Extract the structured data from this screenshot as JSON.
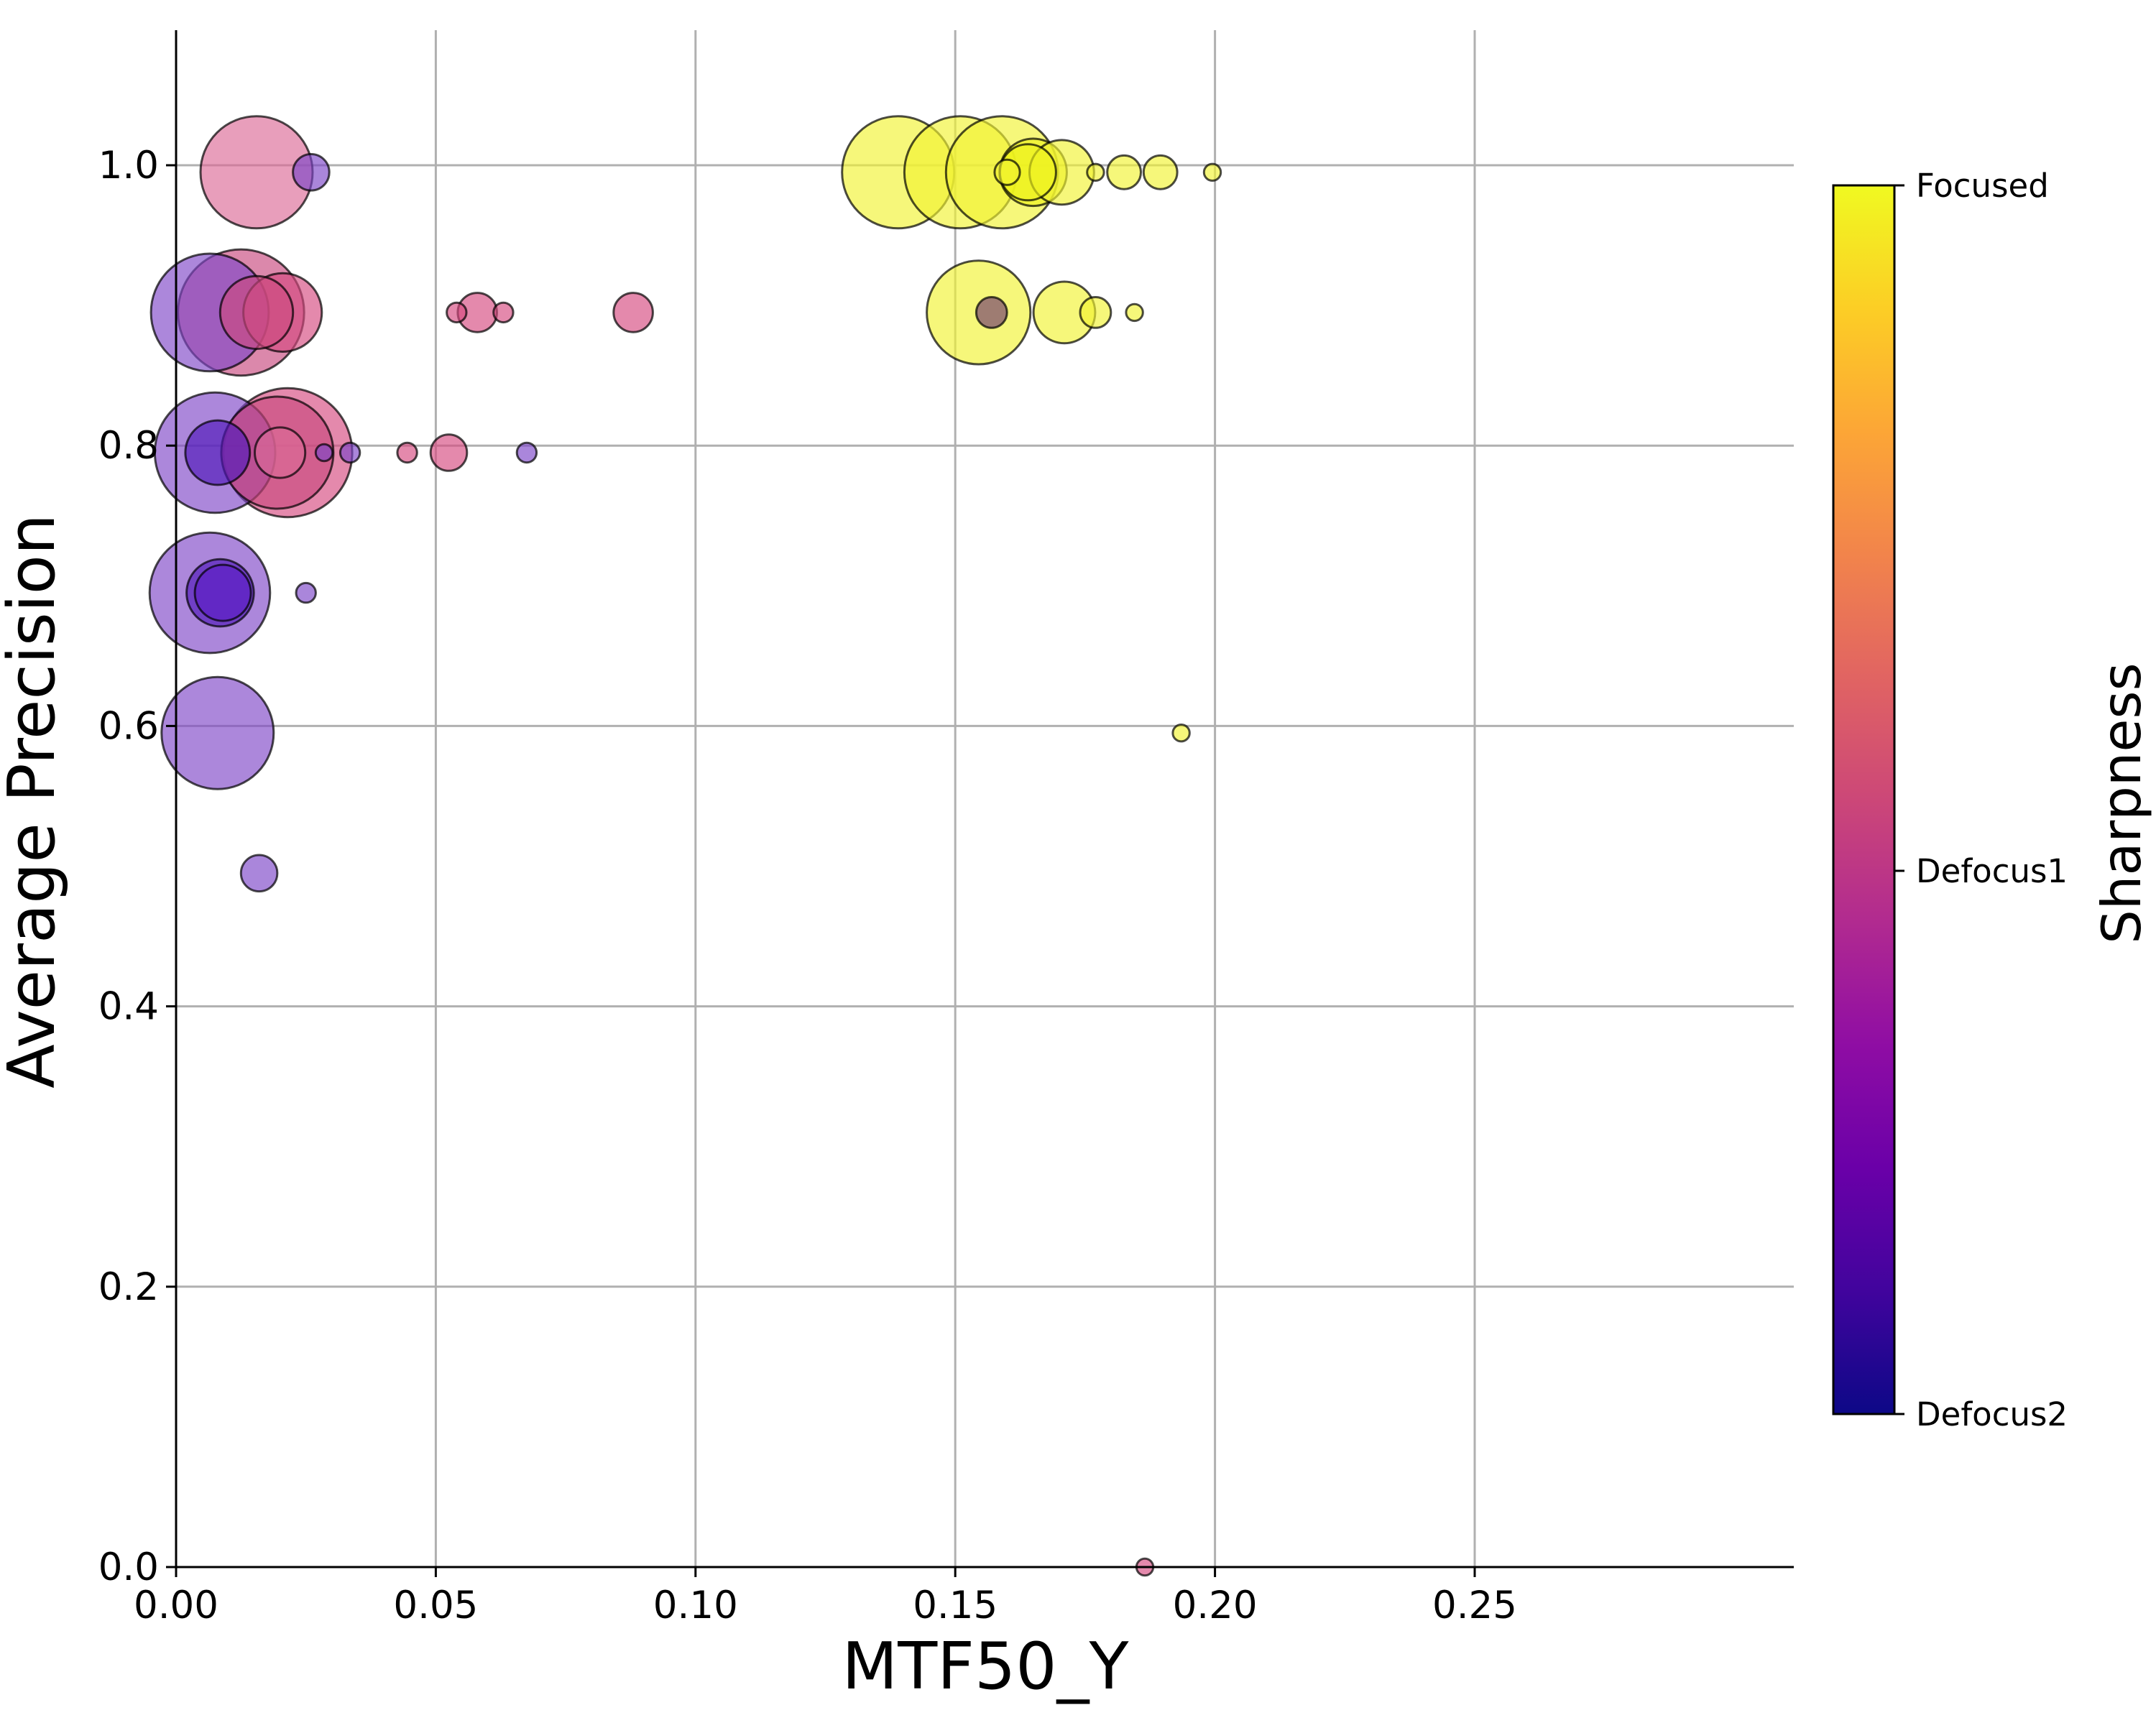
{
  "chart_data": {
    "type": "scatter",
    "xlabel": "MTF50_Y",
    "ylabel": "Average Precision",
    "xlim": [
      0.0,
      0.3
    ],
    "ylim": [
      0.0,
      1.095
    ],
    "xticks": [
      "0.00",
      "0.05",
      "0.10",
      "0.15",
      "0.20",
      "0.25"
    ],
    "xtick_values": [
      0.0,
      0.05,
      0.1,
      0.15,
      0.2,
      0.25
    ],
    "yticks": [
      "0.0",
      "0.2",
      "0.4",
      "0.6",
      "0.8",
      "1.0"
    ],
    "ytick_values": [
      0.0,
      0.2,
      0.4,
      0.6,
      0.8,
      1.0
    ],
    "grid": true,
    "colorbar": {
      "label": "Sharpness",
      "colormap": "plasma",
      "ticks": [
        "Focused",
        "Defocus1",
        "Defocus2"
      ]
    },
    "points": [
      {
        "x": 0.0155,
        "y": 0.995,
        "size": 40,
        "class": "Defocus1",
        "color": "#dc6a96"
      },
      {
        "x": 0.026,
        "y": 0.995,
        "size": 13,
        "class": "Defocus2",
        "color": "#7c45c8"
      },
      {
        "x": 0.0065,
        "y": 0.895,
        "size": 42,
        "class": "Defocus2",
        "color": "#7f47c7"
      },
      {
        "x": 0.0125,
        "y": 0.895,
        "size": 45,
        "class": "Defocus1",
        "color": "#c8487e"
      },
      {
        "x": 0.0155,
        "y": 0.895,
        "size": 26,
        "class": "Defocus1",
        "color": "#cc497f"
      },
      {
        "x": 0.0205,
        "y": 0.895,
        "size": 28,
        "class": "Defocus1",
        "color": "#d5497f"
      },
      {
        "x": 0.054,
        "y": 0.895,
        "size": 7,
        "class": "Defocus1",
        "color": "#d5497f"
      },
      {
        "x": 0.058,
        "y": 0.895,
        "size": 14,
        "class": "Defocus1",
        "color": "#d5497f"
      },
      {
        "x": 0.063,
        "y": 0.895,
        "size": 7,
        "class": "Defocus1",
        "color": "#d5497f"
      },
      {
        "x": 0.088,
        "y": 0.895,
        "size": 14,
        "class": "Defocus1",
        "color": "#d5497f"
      },
      {
        "x": 0.0075,
        "y": 0.795,
        "size": 43,
        "class": "Defocus2",
        "color": "#7f47c7"
      },
      {
        "x": 0.008,
        "y": 0.795,
        "size": 23,
        "class": "Defocus2",
        "color": "#5018ba"
      },
      {
        "x": 0.0195,
        "y": 0.795,
        "size": 40,
        "class": "Defocus1",
        "color": "#c8487e"
      },
      {
        "x": 0.0215,
        "y": 0.795,
        "size": 46,
        "class": "Defocus1",
        "color": "#d5497f"
      },
      {
        "x": 0.02,
        "y": 0.795,
        "size": 18,
        "class": "Defocus1",
        "color": "#dc6a96"
      },
      {
        "x": 0.0285,
        "y": 0.795,
        "size": 6,
        "class": "Defocus2",
        "color": "#7c45c8"
      },
      {
        "x": 0.0335,
        "y": 0.795,
        "size": 7,
        "class": "Defocus2",
        "color": "#7c45c8"
      },
      {
        "x": 0.0445,
        "y": 0.795,
        "size": 7,
        "class": "Defocus1",
        "color": "#d5497f"
      },
      {
        "x": 0.0525,
        "y": 0.795,
        "size": 13,
        "class": "Defocus1",
        "color": "#d5497f"
      },
      {
        "x": 0.0675,
        "y": 0.795,
        "size": 7,
        "class": "Defocus2",
        "color": "#7c45c8"
      },
      {
        "x": 0.0065,
        "y": 0.695,
        "size": 43,
        "class": "Defocus2",
        "color": "#7f47c7"
      },
      {
        "x": 0.0085,
        "y": 0.695,
        "size": 24,
        "class": "Defocus2",
        "color": "#5018ba"
      },
      {
        "x": 0.009,
        "y": 0.695,
        "size": 20,
        "class": "Defocus2",
        "color": "#5a1cc4"
      },
      {
        "x": 0.025,
        "y": 0.695,
        "size": 7,
        "class": "Defocus2",
        "color": "#7c45c8"
      },
      {
        "x": 0.008,
        "y": 0.595,
        "size": 40,
        "class": "Defocus2",
        "color": "#7f47c7"
      },
      {
        "x": 0.016,
        "y": 0.495,
        "size": 13,
        "class": "Defocus2",
        "color": "#7c45c8"
      },
      {
        "x": 0.139,
        "y": 0.995,
        "size": 40,
        "class": "Focused",
        "color": "#f1f233"
      },
      {
        "x": 0.151,
        "y": 0.995,
        "size": 40,
        "class": "Focused",
        "color": "#f1f233"
      },
      {
        "x": 0.159,
        "y": 0.995,
        "size": 40,
        "class": "Focused",
        "color": "#f1f233"
      },
      {
        "x": 0.16,
        "y": 0.995,
        "size": 9,
        "class": "Focused",
        "color": "#f1f233"
      },
      {
        "x": 0.165,
        "y": 0.995,
        "size": 24,
        "class": "Focused",
        "color": "#eef21c"
      },
      {
        "x": 0.164,
        "y": 0.995,
        "size": 20,
        "class": "Focused",
        "color": "#eef21c"
      },
      {
        "x": 0.1705,
        "y": 0.995,
        "size": 23,
        "class": "Focused",
        "color": "#f1f233"
      },
      {
        "x": 0.177,
        "y": 0.995,
        "size": 6,
        "class": "Focused",
        "color": "#f1f233"
      },
      {
        "x": 0.1825,
        "y": 0.995,
        "size": 12,
        "class": "Focused",
        "color": "#f1f233"
      },
      {
        "x": 0.1895,
        "y": 0.995,
        "size": 12,
        "class": "Focused",
        "color": "#f1f233"
      },
      {
        "x": 0.1995,
        "y": 0.995,
        "size": 6,
        "class": "Focused",
        "color": "#f1f233"
      },
      {
        "x": 0.1545,
        "y": 0.895,
        "size": 37,
        "class": "Focused",
        "color": "#f1f233"
      },
      {
        "x": 0.157,
        "y": 0.895,
        "size": 11,
        "class": "Defocus2",
        "color": "#6e3a6e"
      },
      {
        "x": 0.171,
        "y": 0.895,
        "size": 22,
        "class": "Focused",
        "color": "#f1f233"
      },
      {
        "x": 0.177,
        "y": 0.895,
        "size": 11,
        "class": "Focused",
        "color": "#f1f233"
      },
      {
        "x": 0.1845,
        "y": 0.895,
        "size": 6,
        "class": "Focused",
        "color": "#f1f233"
      },
      {
        "x": 0.1935,
        "y": 0.595,
        "size": 6,
        "class": "Focused",
        "color": "#f1f233"
      },
      {
        "x": 0.1865,
        "y": 0.0,
        "size": 6,
        "class": "Defocus1",
        "color": "#d5497f"
      }
    ]
  }
}
